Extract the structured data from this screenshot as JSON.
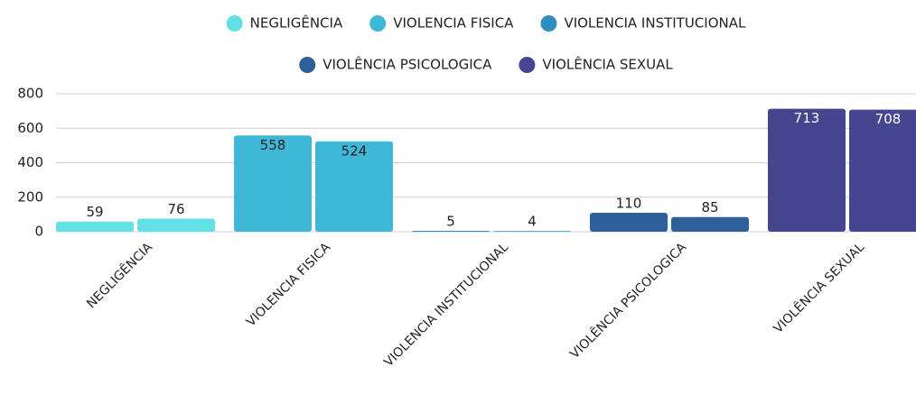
{
  "chart_data": {
    "type": "bar",
    "categories": [
      "NEGLIGÊNCIA",
      "VIOLENCIA FISICA",
      "VIOLENCIA INSTITUCIONAL",
      "VIOLÊNCIA PSICOLOGICA",
      "VIOLÊNCIA SEXUAL"
    ],
    "colors": [
      "#62e0e6",
      "#3fb7d6",
      "#2e8ec0",
      "#2d5f9a",
      "#45468f"
    ],
    "series": [
      {
        "values": [
          59,
          558,
          5,
          110,
          713
        ]
      },
      {
        "values": [
          76,
          524,
          4,
          85,
          708
        ]
      }
    ],
    "ylim": [
      0,
      800
    ],
    "yticks": [
      0,
      200,
      400,
      600,
      800
    ],
    "grid": true
  }
}
